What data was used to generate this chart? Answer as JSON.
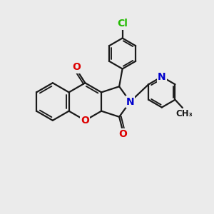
{
  "bg_color": "#ebebeb",
  "bond_color": "#1a1a1a",
  "bond_width": 1.6,
  "atom_colors": {
    "O": "#dd0000",
    "N": "#0000cc",
    "Cl": "#22bb00",
    "C": "#1a1a1a"
  },
  "font_size": 9.5,
  "fig_size": [
    3.0,
    3.0
  ],
  "dpi": 100
}
